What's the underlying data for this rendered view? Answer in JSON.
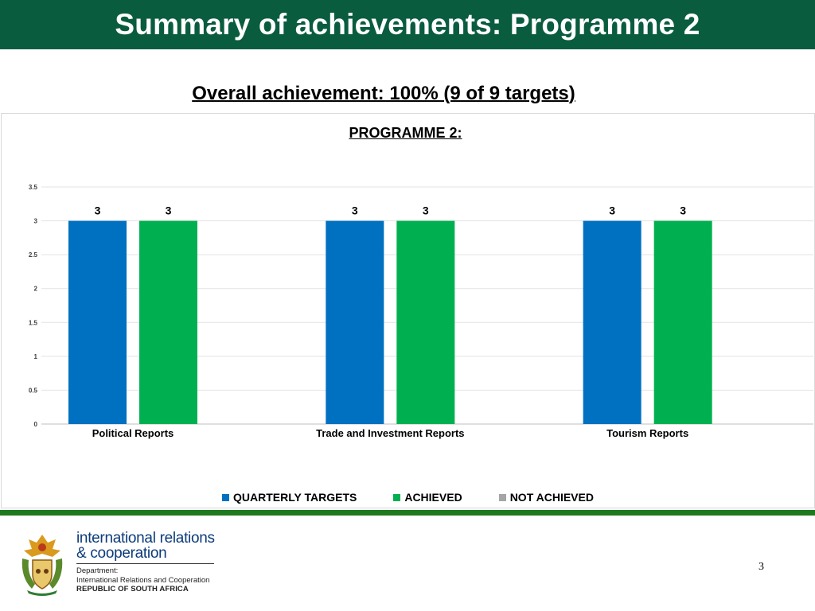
{
  "header": {
    "title": "Summary of achievements: Programme 2"
  },
  "subtitle": "Overall achievement: 100% (9 of 9 targets)",
  "chart_data": {
    "type": "bar",
    "title": "PROGRAMME 2:",
    "categories": [
      "Political Reports",
      "Trade and Investment Reports",
      "Tourism Reports"
    ],
    "series": [
      {
        "name": "QUARTERLY TARGETS",
        "values": [
          3,
          3,
          3
        ],
        "color": "#0070c0"
      },
      {
        "name": "ACHIEVED",
        "values": [
          3,
          3,
          3
        ],
        "color": "#00b050"
      },
      {
        "name": "NOT ACHIEVED",
        "values": [
          0,
          0,
          0
        ],
        "color": "#a5a5a5"
      }
    ],
    "data_labels": [
      [
        "3",
        "3",
        "3"
      ],
      [
        "3",
        "3",
        "3"
      ],
      [
        "",
        "",
        ""
      ]
    ],
    "yticks": [
      "0",
      "0.5",
      "1",
      "1.5",
      "2",
      "2.5",
      "3",
      "3.5"
    ],
    "ylim": [
      0,
      3.5
    ],
    "grid": true,
    "legend_position": "bottom"
  },
  "footer": {
    "dept_line1": "international relations",
    "dept_line2": "& cooperation",
    "dept_small1": "Department:",
    "dept_small2": "International Relations and Cooperation",
    "dept_small3": "REPUBLIC OF SOUTH AFRICA",
    "page_number": "3"
  }
}
